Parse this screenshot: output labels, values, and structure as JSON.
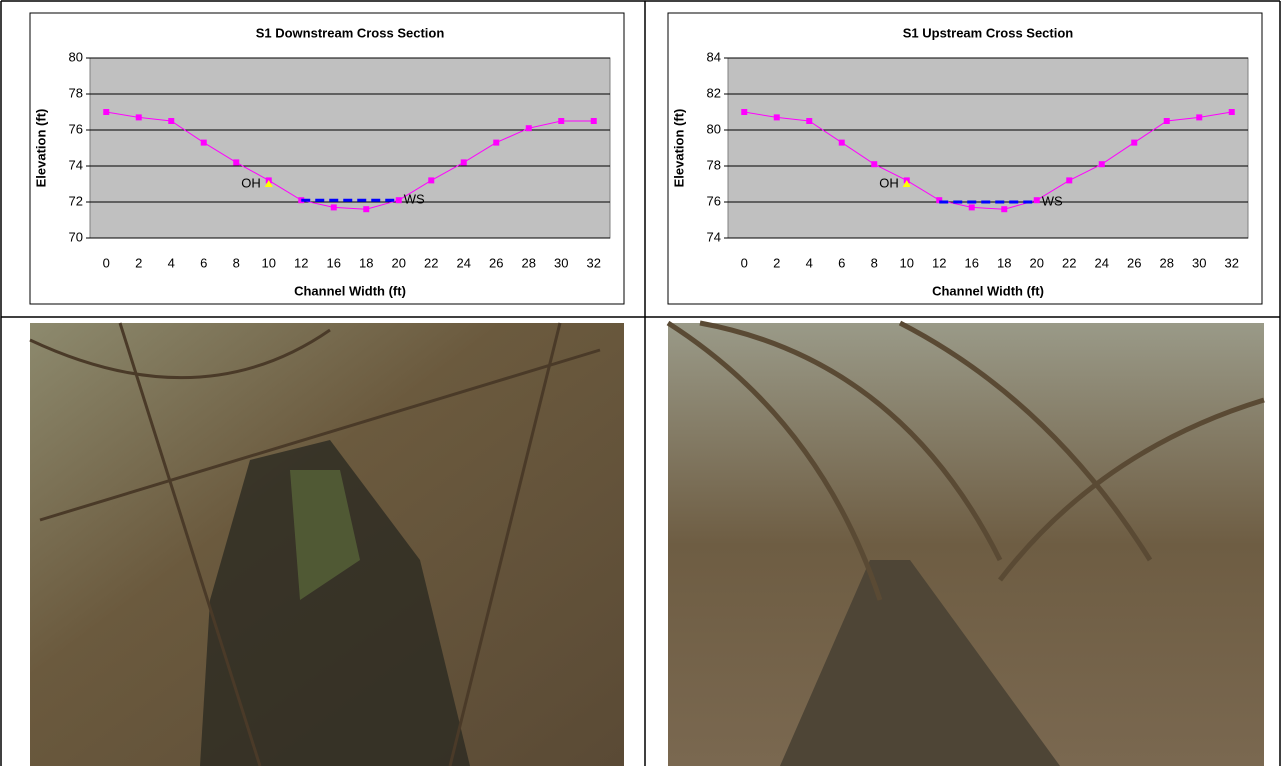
{
  "chart_data": [
    {
      "type": "line",
      "title": "S1 Downstream Cross Section",
      "x_label": "Channel Width (ft)",
      "y_label": "Elevation (ft)",
      "categories": [
        "0",
        "2",
        "4",
        "6",
        "8",
        "10",
        "12",
        "16",
        "18",
        "20",
        "22",
        "24",
        "26",
        "28",
        "30",
        "32"
      ],
      "values": [
        77,
        76.7,
        76.5,
        75.3,
        74.2,
        73.2,
        72.1,
        71.7,
        71.6,
        72.1,
        73.2,
        74.2,
        75.3,
        76.1,
        76.5,
        76.5
      ],
      "color": "#ff00ff",
      "ylim": [
        70,
        80
      ],
      "yticks": [
        70,
        72,
        74,
        76,
        78,
        80
      ],
      "grid": true,
      "annotations": [
        {
          "text": "OH",
          "x": "10",
          "y": 73.0,
          "color": "#ffff00"
        }
      ],
      "water_surface": {
        "text": "WS",
        "x": [
          "12",
          "20"
        ],
        "y": 72.1,
        "color": "#0000ff"
      }
    },
    {
      "type": "line",
      "title": "S1 Upstream Cross Section",
      "x_label": "Channel Width (ft)",
      "y_label": "Elevation (ft)",
      "categories": [
        "0",
        "2",
        "4",
        "6",
        "8",
        "10",
        "12",
        "16",
        "18",
        "20",
        "22",
        "24",
        "26",
        "28",
        "30",
        "32"
      ],
      "values": [
        81,
        80.7,
        80.5,
        79.3,
        78.1,
        77.2,
        76.1,
        75.7,
        75.6,
        76.1,
        77.2,
        78.1,
        79.3,
        80.5,
        80.7,
        81
      ],
      "color": "#ff00ff",
      "ylim": [
        74,
        84
      ],
      "yticks": [
        74,
        76,
        78,
        80,
        82,
        84
      ],
      "grid": true,
      "annotations": [
        {
          "text": "OH",
          "x": "10",
          "y": 77.0,
          "color": "#ffff00"
        }
      ],
      "water_surface": {
        "text": "WS",
        "x": [
          "12",
          "20"
        ],
        "y": 76.0,
        "color": "#0000ff"
      }
    }
  ]
}
